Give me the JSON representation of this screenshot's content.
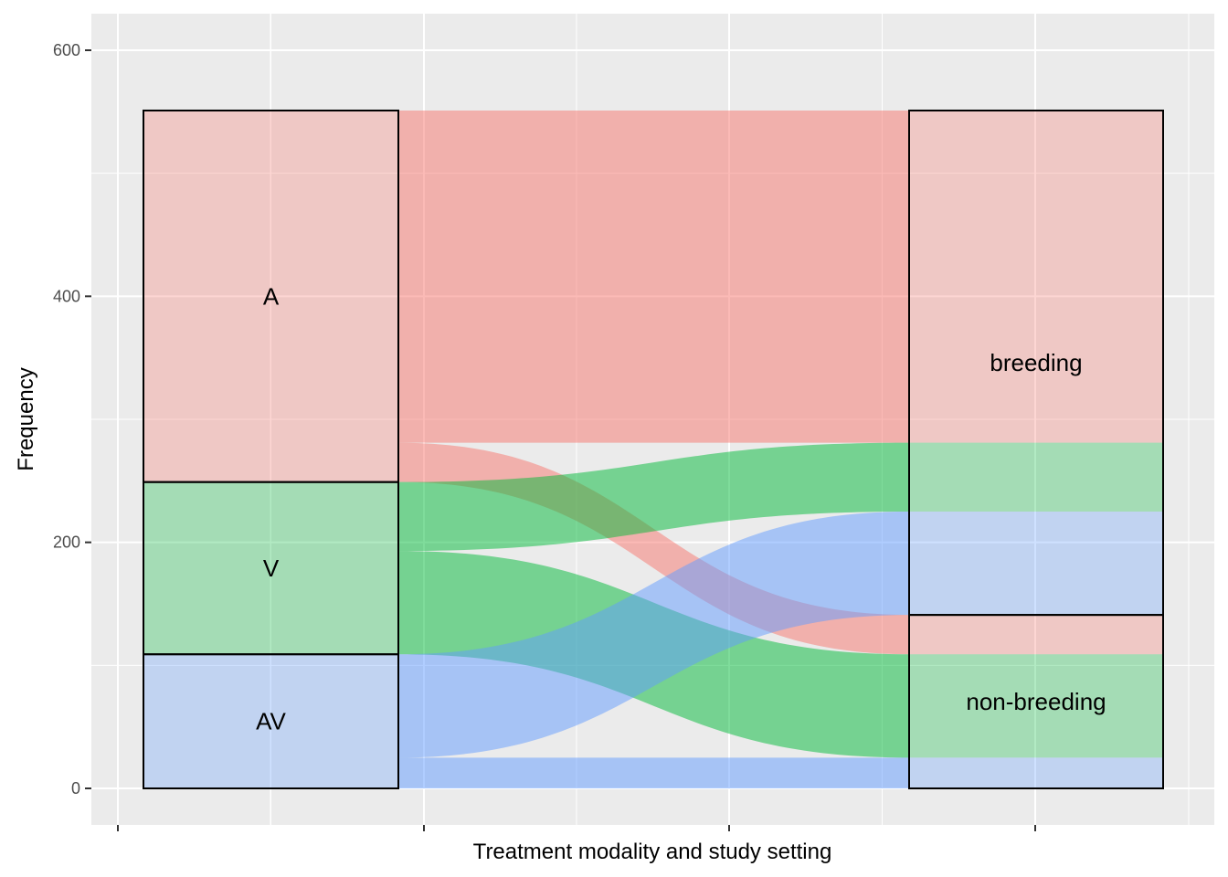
{
  "chart_data": {
    "type": "alluvial",
    "xlabel": "Treatment modality and study setting",
    "ylabel": "Frequency",
    "ylim": [
      0,
      600
    ],
    "yticks": [
      0,
      200,
      400,
      600
    ],
    "grid": true,
    "legend": "none",
    "colors": {
      "A": "#F8766D",
      "V": "#00BA38",
      "AV": "#619CFF"
    },
    "axes": [
      {
        "key": "treatment",
        "strata": [
          "A",
          "V",
          "AV"
        ]
      },
      {
        "key": "setting",
        "strata": [
          "breeding",
          "non-breeding"
        ]
      }
    ],
    "flows": [
      {
        "from": "A",
        "to": "breeding",
        "value": 270
      },
      {
        "from": "A",
        "to": "non-breeding",
        "value": 32
      },
      {
        "from": "V",
        "to": "breeding",
        "value": 56
      },
      {
        "from": "V",
        "to": "non-breeding",
        "value": 84
      },
      {
        "from": "AV",
        "to": "breeding",
        "value": 84
      },
      {
        "from": "AV",
        "to": "non-breeding",
        "value": 25
      }
    ]
  }
}
